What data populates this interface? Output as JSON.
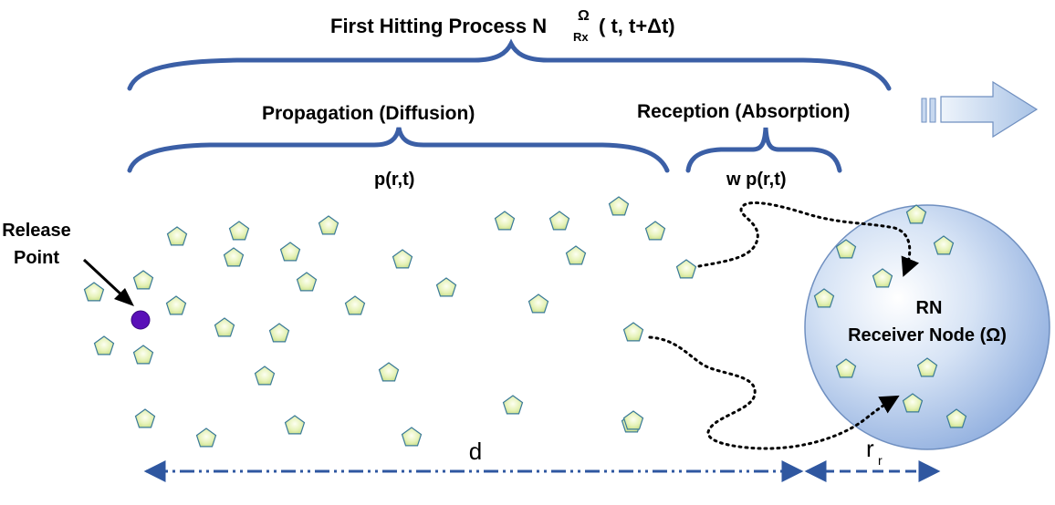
{
  "title": {
    "prefix": "First Hitting Process N",
    "superscript": "Ω",
    "subscript": "Rx",
    "suffix": "( t, t+Δt)"
  },
  "propagation_label": "Propagation (Diffusion)",
  "reception_label": "Reception (Absorption)",
  "propagation_formula": "p(r,t)",
  "reception_formula": "w p(r,t)",
  "release_point_label": [
    "Release",
    "Point"
  ],
  "receiver": {
    "abbrev": "RN",
    "label": "Receiver Node (Ω)"
  },
  "distance_label": "d",
  "radius_label": {
    "base": "r",
    "subscript": "r"
  },
  "colors": {
    "bracket": "#3b5fa6",
    "molecule_fill": "#d9eaa8",
    "molecule_stroke": "#3a7a98",
    "release_point": "#5a10b8",
    "receiver_fill": "#a9c4e8",
    "receiver_stroke": "#6f8fc0",
    "dimension_line": "#2f57a0",
    "arrow_fill": "#c3d6ee"
  }
}
